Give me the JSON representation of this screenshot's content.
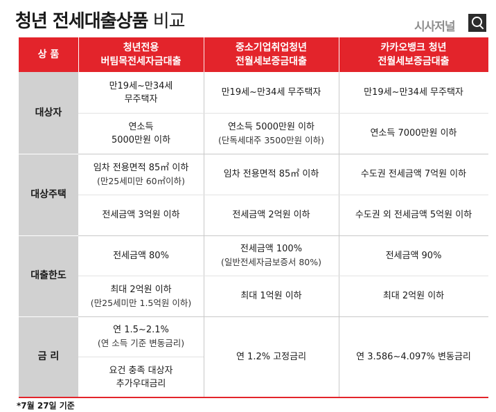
{
  "title": {
    "bold": "청년 전세대출상품",
    "light": "비교"
  },
  "brand": "시사저널",
  "zoom_icon": "magnifier-icon",
  "headers": {
    "label": "상  품",
    "col1": [
      "청년전용",
      "버팀목전세자금대출"
    ],
    "col2": [
      "중소기업취업청년",
      "전월세보증금대출"
    ],
    "col3": [
      "카카오뱅크 청년",
      "전월세보증금대출"
    ]
  },
  "labels": {
    "eligibility": "대상자",
    "housing": "대상주택",
    "limit": "대출한도",
    "rate": "금  리"
  },
  "rows": {
    "age": {
      "c1": [
        "만19세~만34세",
        "무주택자"
      ],
      "c2": "만19세~만34세 무주택자",
      "c3": "만19세~만34세 무주택자"
    },
    "income": {
      "c1": [
        "연소득",
        "5000만원 이하"
      ],
      "c2": [
        "연소득 5000만원 이하",
        "(단독세대주 3500만원 이하)"
      ],
      "c3": "연소득 7000만원 이하"
    },
    "area": {
      "c1": [
        "임차 전용면적 85㎡ 이하",
        "(만25세미만 60㎡이하)"
      ],
      "c2": "임차 전용면적 85㎡ 이하",
      "c3": "수도권 전세금액 7억원 이하"
    },
    "deposit": {
      "c1": "전세금액 3억원 이하",
      "c2": "전세금액 2억원 이하",
      "c3": "수도권 외 전세금액 5억원 이하"
    },
    "ratio": {
      "c1": "전세금액 80%",
      "c2": [
        "전세금액 100%",
        "(일반전세자금보증서 80%)"
      ],
      "c3": "전세금액 90%"
    },
    "max": {
      "c1": [
        "최대 2억원 이하",
        "(만25세미만 1.5억원 이하)"
      ],
      "c2": "최대 1억원 이하",
      "c3": "최대 2억원 이하"
    },
    "interest": {
      "c1a": [
        "연 1.5~2.1%",
        "(연 소득 기준 변동금리)"
      ],
      "c1b": [
        "요건 충족 대상자",
        "추가우대금리"
      ],
      "c2": "연 1.2% 고정금리",
      "c3": "연 3.586~4.097% 변동금리"
    }
  },
  "footnote": "*7월 27일 기준",
  "colors": {
    "header": "#e3242b",
    "label_bg": "#d1d1d1",
    "grid": "#cfcfcf",
    "border": "#e3242b"
  }
}
